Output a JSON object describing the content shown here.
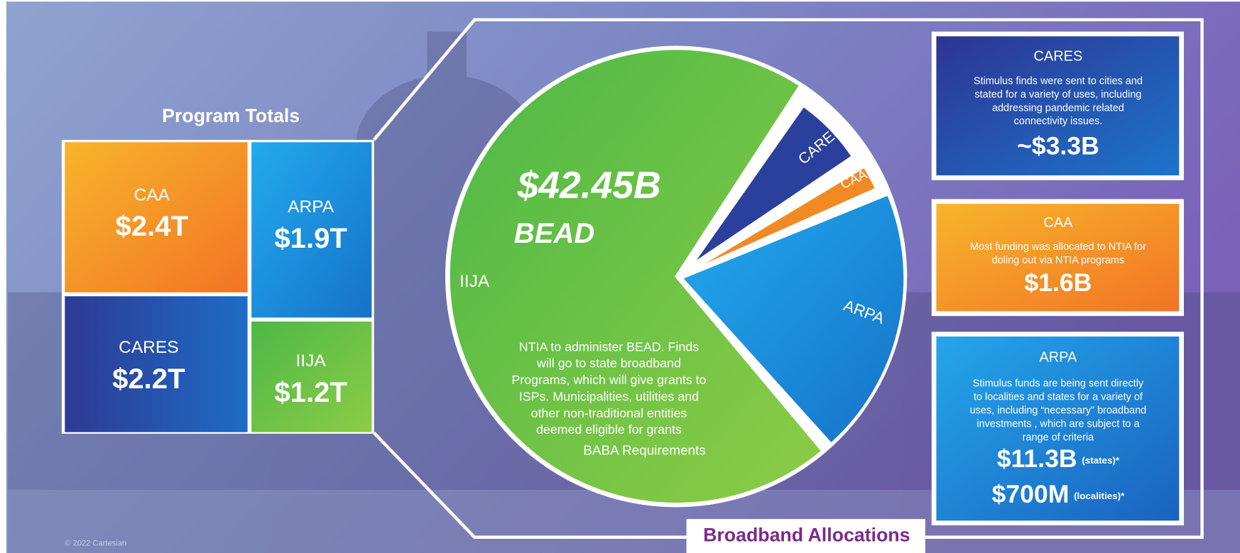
{
  "program_totals": {
    "title": "Program Totals",
    "items": [
      {
        "name": "CAA",
        "amount": "$2.4T"
      },
      {
        "name": "ARPA",
        "amount": "$1.9T"
      },
      {
        "name": "CARES",
        "amount": "$2.2T"
      },
      {
        "name": "IIJA",
        "amount": "$1.2T"
      }
    ]
  },
  "pie": {
    "amount": "$42.45B",
    "program": "BEAD",
    "slice_labels": [
      "IIJA",
      "CARES",
      "CAA",
      "ARPA"
    ],
    "description": [
      "NTIA to administer BEAD.  Finds",
      "will go to state broadband",
      "Programs, which will give grants to",
      "ISPs.  Municipalities, utilities  and",
      "other non-traditional entities",
      "deemed eligible  for grants"
    ],
    "note": "BABA Requirements"
  },
  "cards": [
    {
      "title": "CARES",
      "description": [
        "Stimulus finds were sent to cities and",
        "stated for a variety of uses, including",
        "addressing pandemic related",
        "connectivity issues."
      ],
      "amounts": [
        {
          "amount": "~$3.3B"
        }
      ]
    },
    {
      "title": "CAA",
      "description": [
        "Most funding was allocated to NTIA for",
        "doling out via NTIA programs"
      ],
      "amounts": [
        {
          "amount": "$1.6B"
        }
      ]
    },
    {
      "title": "ARPA",
      "description": [
        "Stimulus funds are being sent directly",
        "to localities and states for a variety of",
        "uses, including “necessary” broadband",
        "investments , which are subject to a",
        "range of criteria"
      ],
      "amounts": [
        {
          "amount": "$11.3B",
          "qualifier": "(states)*"
        },
        {
          "amount": "$700M",
          "qualifier": "(localities)*"
        }
      ]
    }
  ],
  "footer": {
    "title": "Broadband Allocations",
    "copyright": "© 2022 Cartesian"
  }
}
